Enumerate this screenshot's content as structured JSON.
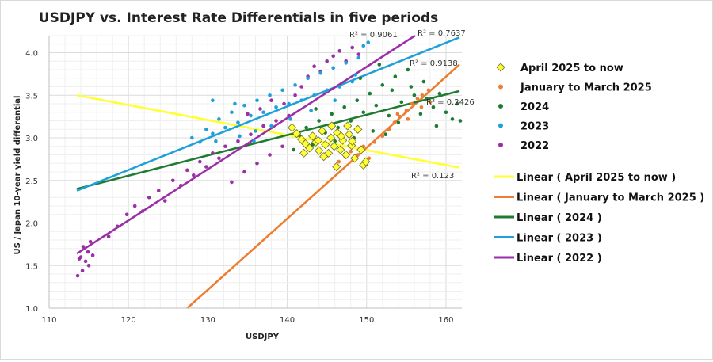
{
  "chart_data": {
    "type": "scatter",
    "title": "USDJPY vs. Interest Rate Differentials in five periods",
    "xlabel": "USDJPY",
    "ylabel": "US / Japan 10-year yield differential",
    "xlim": [
      110,
      162
    ],
    "ylim": [
      1.0,
      4.2
    ],
    "x_ticks": [
      "110",
      "120",
      "130",
      "140",
      "150",
      "160"
    ],
    "y_ticks": [
      "1.0",
      "1.5",
      "2.0",
      "2.5",
      "3.0",
      "3.5",
      "4.0"
    ],
    "grid": true,
    "legend_position": "right",
    "series": [
      {
        "name": "April 2025 to now",
        "marker": "diamond",
        "color": "#ffff33",
        "points": [
          [
            140.6,
            3.12
          ],
          [
            141.2,
            3.05
          ],
          [
            141.8,
            2.98
          ],
          [
            142.3,
            2.93
          ],
          [
            142.8,
            2.88
          ],
          [
            143.2,
            3.02
          ],
          [
            143.6,
            2.95
          ],
          [
            144.0,
            2.85
          ],
          [
            144.4,
            3.08
          ],
          [
            144.8,
            2.92
          ],
          [
            145.2,
            2.82
          ],
          [
            145.5,
            3.0
          ],
          [
            145.9,
            2.9
          ],
          [
            146.3,
            3.06
          ],
          [
            146.7,
            2.86
          ],
          [
            147.0,
            2.97
          ],
          [
            147.4,
            2.8
          ],
          [
            147.8,
            3.04
          ],
          [
            148.1,
            2.91
          ],
          [
            148.5,
            2.76
          ],
          [
            148.9,
            3.1
          ],
          [
            149.3,
            2.86
          ],
          [
            149.6,
            2.68
          ],
          [
            149.9,
            2.72
          ],
          [
            146.2,
            2.66
          ],
          [
            147.6,
            3.14
          ],
          [
            143.9,
            2.97
          ],
          [
            142.1,
            2.82
          ],
          [
            145.6,
            3.14
          ],
          [
            144.6,
            2.78
          ],
          [
            148.2,
            2.96
          ],
          [
            146.8,
            3.02
          ]
        ]
      },
      {
        "name": "January to March 2025",
        "marker": "circle",
        "color": "#ed7d31",
        "points": [
          [
            146.5,
            2.72
          ],
          [
            147.3,
            2.78
          ],
          [
            148.0,
            2.84
          ],
          [
            148.9,
            2.8
          ],
          [
            149.6,
            2.9
          ],
          [
            150.3,
            2.76
          ],
          [
            151.0,
            2.95
          ],
          [
            152.0,
            3.02
          ],
          [
            152.8,
            3.1
          ],
          [
            153.5,
            3.18
          ],
          [
            154.2,
            3.25
          ],
          [
            155.0,
            3.32
          ],
          [
            155.7,
            3.4
          ],
          [
            156.4,
            3.46
          ],
          [
            157.0,
            3.5
          ],
          [
            157.8,
            3.56
          ],
          [
            158.0,
            3.42
          ],
          [
            156.9,
            3.36
          ],
          [
            155.2,
            3.22
          ],
          [
            153.9,
            3.28
          ]
        ]
      },
      {
        "name": "2024",
        "marker": "circle",
        "color": "#1e7b32",
        "points": [
          [
            140.8,
            2.86
          ],
          [
            141.6,
            3.02
          ],
          [
            142.4,
            3.12
          ],
          [
            143.2,
            2.92
          ],
          [
            144.0,
            3.2
          ],
          [
            144.8,
            3.06
          ],
          [
            145.6,
            3.28
          ],
          [
            146.4,
            3.12
          ],
          [
            147.2,
            3.36
          ],
          [
            148.0,
            3.2
          ],
          [
            148.8,
            3.44
          ],
          [
            149.6,
            3.3
          ],
          [
            150.4,
            3.52
          ],
          [
            151.2,
            3.38
          ],
          [
            152.0,
            3.62
          ],
          [
            152.8,
            3.26
          ],
          [
            153.6,
            3.72
          ],
          [
            154.4,
            3.42
          ],
          [
            155.2,
            3.8
          ],
          [
            156.0,
            3.5
          ],
          [
            156.8,
            3.28
          ],
          [
            157.6,
            3.46
          ],
          [
            158.4,
            3.36
          ],
          [
            159.2,
            3.52
          ],
          [
            160.0,
            3.3
          ],
          [
            160.8,
            3.22
          ],
          [
            161.4,
            3.4
          ],
          [
            161.8,
            3.2
          ],
          [
            150.8,
            3.08
          ],
          [
            152.4,
            3.04
          ],
          [
            154.0,
            3.18
          ],
          [
            155.6,
            3.6
          ],
          [
            157.2,
            3.66
          ],
          [
            148.4,
            3.0
          ],
          [
            146.0,
            2.96
          ],
          [
            143.6,
            3.34
          ],
          [
            149.2,
            3.7
          ],
          [
            151.6,
            3.86
          ],
          [
            153.2,
            3.56
          ],
          [
            158.8,
            3.14
          ]
        ]
      },
      {
        "name": "2023",
        "marker": "circle",
        "color": "#1fa0d8",
        "points": [
          [
            128.0,
            3.0
          ],
          [
            129.0,
            2.95
          ],
          [
            129.8,
            3.1
          ],
          [
            130.6,
            3.05
          ],
          [
            131.4,
            3.22
          ],
          [
            132.2,
            3.12
          ],
          [
            133.0,
            3.3
          ],
          [
            133.8,
            3.18
          ],
          [
            134.6,
            3.38
          ],
          [
            135.4,
            3.26
          ],
          [
            136.2,
            3.44
          ],
          [
            137.0,
            3.3
          ],
          [
            137.8,
            3.5
          ],
          [
            138.6,
            3.36
          ],
          [
            139.4,
            3.56
          ],
          [
            140.2,
            3.4
          ],
          [
            141.0,
            3.62
          ],
          [
            141.8,
            3.44
          ],
          [
            142.6,
            3.7
          ],
          [
            143.4,
            3.5
          ],
          [
            144.2,
            3.76
          ],
          [
            145.0,
            3.56
          ],
          [
            145.8,
            3.82
          ],
          [
            146.6,
            3.6
          ],
          [
            147.4,
            3.88
          ],
          [
            148.2,
            3.66
          ],
          [
            149.0,
            3.94
          ],
          [
            149.6,
            4.08
          ],
          [
            150.2,
            4.12
          ],
          [
            146.0,
            3.44
          ],
          [
            143.0,
            3.32
          ],
          [
            140.4,
            3.22
          ],
          [
            138.0,
            3.14
          ],
          [
            136.0,
            3.08
          ],
          [
            134.0,
            3.02
          ],
          [
            131.0,
            2.96
          ],
          [
            130.6,
            3.44
          ],
          [
            133.4,
            3.4
          ],
          [
            135.8,
            2.96
          ],
          [
            148.6,
            3.74
          ]
        ]
      },
      {
        "name": "2022",
        "marker": "circle",
        "color": "#9b2fa6",
        "points": [
          [
            113.6,
            1.38
          ],
          [
            114.0,
            1.6
          ],
          [
            114.3,
            1.72
          ],
          [
            114.6,
            1.55
          ],
          [
            114.9,
            1.66
          ],
          [
            115.2,
            1.78
          ],
          [
            115.5,
            1.62
          ],
          [
            114.2,
            1.44
          ],
          [
            113.8,
            1.58
          ],
          [
            115.0,
            1.5
          ],
          [
            117.5,
            1.84
          ],
          [
            118.6,
            1.96
          ],
          [
            119.8,
            2.1
          ],
          [
            120.8,
            2.2
          ],
          [
            121.8,
            2.14
          ],
          [
            122.6,
            2.3
          ],
          [
            123.8,
            2.38
          ],
          [
            124.6,
            2.26
          ],
          [
            125.6,
            2.5
          ],
          [
            126.6,
            2.44
          ],
          [
            127.4,
            2.62
          ],
          [
            128.2,
            2.56
          ],
          [
            129.0,
            2.72
          ],
          [
            129.8,
            2.66
          ],
          [
            130.6,
            2.82
          ],
          [
            131.4,
            2.76
          ],
          [
            132.2,
            2.9
          ],
          [
            133.0,
            2.48
          ],
          [
            133.8,
            2.96
          ],
          [
            134.6,
            2.6
          ],
          [
            135.4,
            3.04
          ],
          [
            136.2,
            2.7
          ],
          [
            137.0,
            3.14
          ],
          [
            137.8,
            2.8
          ],
          [
            138.6,
            3.2
          ],
          [
            139.4,
            2.9
          ],
          [
            140.2,
            3.26
          ],
          [
            141.0,
            3.5
          ],
          [
            141.8,
            3.6
          ],
          [
            142.6,
            3.72
          ],
          [
            143.4,
            3.84
          ],
          [
            144.2,
            3.78
          ],
          [
            145.0,
            3.9
          ],
          [
            145.8,
            3.96
          ],
          [
            146.6,
            4.02
          ],
          [
            147.4,
            3.9
          ],
          [
            148.2,
            4.06
          ],
          [
            149.0,
            3.98
          ],
          [
            135.0,
            3.28
          ],
          [
            136.6,
            3.34
          ],
          [
            138.0,
            3.44
          ],
          [
            139.6,
            3.4
          ]
        ]
      }
    ],
    "trendlines": [
      {
        "name": "Linear ( April 2025 to now )",
        "color": "#ffff33",
        "x": [
          113.5,
          161.7
        ],
        "y": [
          3.5,
          2.65
        ],
        "r2_label": "R² = 0.123"
      },
      {
        "name": "Linear ( January to March 2025 )",
        "color": "#ed7d31",
        "x": [
          127.4,
          161.7
        ],
        "y": [
          1.0,
          3.86
        ],
        "r2_label": "R² = 0.9138"
      },
      {
        "name": "Linear ( 2024 )",
        "color": "#1e7b32",
        "x": [
          113.5,
          161.7
        ],
        "y": [
          2.4,
          3.55
        ],
        "r2_label": "R² = 0.2426"
      },
      {
        "name": "Linear ( 2023 )",
        "color": "#1fa0d8",
        "x": [
          113.5,
          161.7
        ],
        "y": [
          2.38,
          4.18
        ],
        "r2_label": "R² = 0.7637"
      },
      {
        "name": "Linear ( 2022 )",
        "color": "#9b2fa6",
        "x": [
          113.5,
          156.1
        ],
        "y": [
          1.64,
          4.2
        ],
        "r2_label": "R² = 0.9061"
      }
    ]
  }
}
